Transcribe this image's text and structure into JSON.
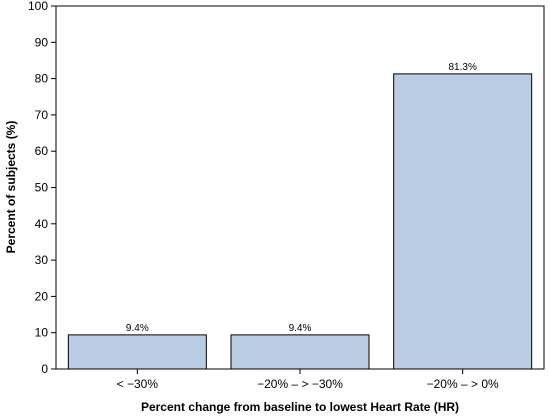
{
  "chart_data": {
    "type": "bar",
    "categories": [
      "< −30%",
      "−20% – > −30%",
      "−20% – > 0%"
    ],
    "values": [
      9.4,
      9.4,
      81.3
    ],
    "data_labels": [
      "9.4%",
      "9.4%",
      "81.3%"
    ],
    "xlabel": "Percent change from baseline to lowest Heart Rate (HR)",
    "ylabel": "Percent of subjects (%)",
    "ylim": [
      0,
      100
    ],
    "yticks": [
      0,
      10,
      20,
      30,
      40,
      50,
      60,
      70,
      80,
      90,
      100
    ],
    "grid": false,
    "bar_color": "#b8cce4",
    "bar_edge_color": "#000000"
  }
}
